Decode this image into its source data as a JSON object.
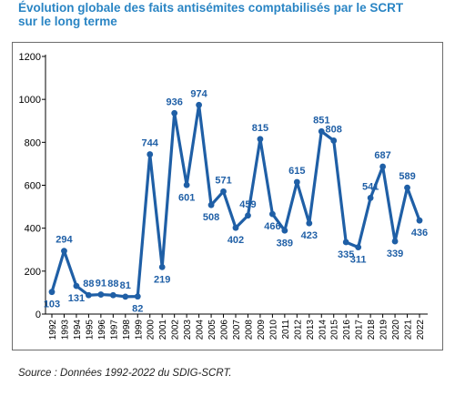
{
  "title_line1": "Évolution globale des faits antisémites comptabilisés par le SCRT",
  "title_line2": "sur le long terme",
  "source": "Source : Données 1992-2022 du SDIG-SCRT.",
  "colors": {
    "title": "#2a85c4",
    "line": "#1f5fa6",
    "label": "#1f5fa6",
    "axis": "#000000",
    "grid": "#d9d9d9"
  },
  "chart_data": {
    "type": "line",
    "title": "Évolution globale des faits antisémites comptabilisés par le SCRT sur le long terme",
    "xlabel": "",
    "ylabel": "",
    "ylim": [
      0,
      1200
    ],
    "yticks": [
      0,
      200,
      400,
      600,
      800,
      1000,
      1200
    ],
    "grid": false,
    "legend": "none",
    "x": [
      "1992",
      "1993",
      "1994",
      "1995",
      "1996",
      "1997",
      "1998",
      "1999",
      "2000",
      "2001",
      "2002",
      "2003",
      "2004",
      "2005",
      "2006",
      "2007",
      "2008",
      "2009",
      "2010",
      "2011",
      "2012",
      "2013",
      "2014",
      "2015",
      "2016",
      "2017",
      "2018",
      "2019",
      "2020",
      "2021",
      "2022"
    ],
    "values": [
      103,
      294,
      131,
      88,
      91,
      88,
      81,
      82,
      744,
      219,
      936,
      601,
      974,
      508,
      571,
      402,
      459,
      815,
      466,
      389,
      615,
      423,
      851,
      808,
      335,
      311,
      541,
      687,
      339,
      589,
      436
    ],
    "label_placement": [
      "below",
      "above",
      "below",
      "above",
      "above",
      "above",
      "above",
      "below",
      "above",
      "below",
      "above",
      "below",
      "above",
      "below",
      "above",
      "below",
      "above",
      "above",
      "below",
      "below",
      "above",
      "below",
      "above",
      "above",
      "below",
      "below",
      "above",
      "above",
      "below",
      "above",
      "below"
    ]
  }
}
